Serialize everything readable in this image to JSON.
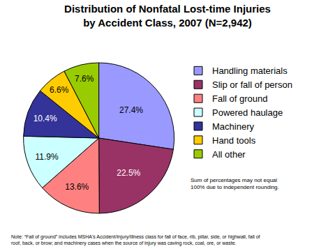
{
  "chart_data": {
    "type": "pie",
    "title": "Distribution of Nonfatal Lost-time Injuries\nby Accident Class, 2007 (N=2,942)",
    "categories": [
      "Handling materials",
      "Slip or fall of person",
      "Fall of ground",
      "Powered haulage",
      "Machinery",
      "Hand tools",
      "All other"
    ],
    "values": [
      27.4,
      22.5,
      13.6,
      11.9,
      10.4,
      6.6,
      7.6
    ],
    "value_labels": [
      "27.4%",
      "22.5%",
      "13.6%",
      "11.9%",
      "10.4%",
      "6.6%",
      "7.6%"
    ],
    "colors": [
      "#9999ff",
      "#993366",
      "#ff8080",
      "#ccffff",
      "#333399",
      "#ffcc00",
      "#99cc00"
    ],
    "data_labels": true,
    "legend": "right",
    "annotations": [
      "Sum of percentages may not equal\n100% due to independent rounding.",
      "Note: “Fall of ground” includes MSHA's Accident/Injury/Illness class for fall of face, rib, pillar, side, or highwall, fall of\nroof, back, or brow; and machinery cases when the source of injury was caving rock, coal, ore, or waste."
    ]
  }
}
